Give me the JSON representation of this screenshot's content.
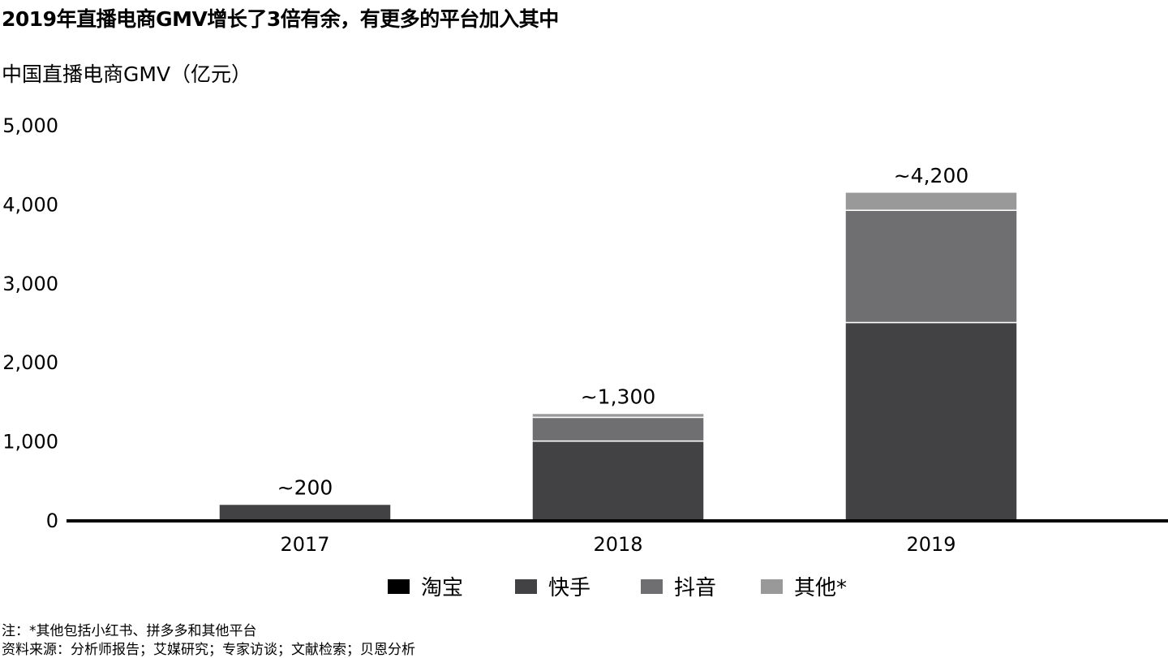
{
  "title": "2019年直播电商GMV增长了3倍有余，有更多的平台加入其中",
  "subtitle": "中国直播电商GMV（亿元）",
  "footnotes": {
    "note": "注：*其他包括小红书、拼多多和其他平台",
    "source": "资料来源：分析师报告；艾媒研究；专家访谈；文献检索；贝恩分析"
  },
  "colors": {
    "淘宝": "#000000",
    "快手": "#424244",
    "抖音": "#6f6f72",
    "其他*": "#999999",
    "axis": "#000000"
  },
  "chart_data": {
    "type": "bar",
    "stacked": true,
    "title": "2019年直播电商GMV增长了3倍有余，有更多的平台加入其中",
    "ylabel": "中国直播电商GMV（亿元）",
    "categories": [
      "2017",
      "2018",
      "2019"
    ],
    "ylim": [
      0,
      5000
    ],
    "yticks": [
      "0",
      "1,000",
      "2,000",
      "3,000",
      "4,000",
      "5,000"
    ],
    "series": [
      {
        "name": "淘宝",
        "values": [
          0,
          0,
          0
        ]
      },
      {
        "name": "快手",
        "values": [
          200,
          1000,
          2500
        ]
      },
      {
        "name": "抖音",
        "values": [
          0,
          300,
          1420
        ]
      },
      {
        "name": "其他*",
        "values": [
          0,
          50,
          230
        ]
      }
    ],
    "total_labels": [
      "~200",
      "~1,300",
      "~4,200"
    ],
    "legend_position": "bottom",
    "grid": false
  }
}
